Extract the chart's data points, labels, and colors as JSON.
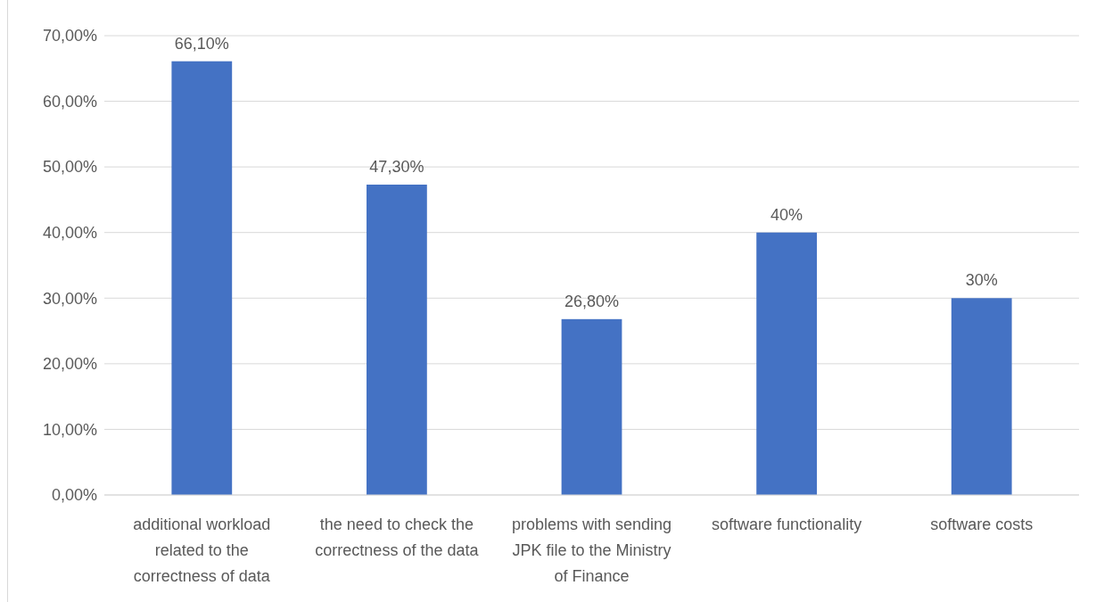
{
  "chart_data": {
    "type": "bar",
    "categories": [
      "additional workload related to the correctness of data",
      "the need to check the correctness of the data",
      "problems with sending JPK file to the Ministry of Finance",
      "software functionality",
      "software costs"
    ],
    "values": [
      66.1,
      47.3,
      26.8,
      40,
      30
    ],
    "value_labels": [
      "66,10%",
      "47,30%",
      "26,80%",
      "40%",
      "30%"
    ],
    "color": "#4472c4",
    "ylim": [
      0,
      70
    ],
    "yticks": [
      {
        "value": 0,
        "label": "0,00%"
      },
      {
        "value": 10,
        "label": "10,00%"
      },
      {
        "value": 20,
        "label": "20,00%"
      },
      {
        "value": 30,
        "label": "30,00%"
      },
      {
        "value": 40,
        "label": "40,00%"
      },
      {
        "value": 50,
        "label": "50,00%"
      },
      {
        "value": 60,
        "label": "60,00%"
      },
      {
        "value": 70,
        "label": "70,00%"
      }
    ],
    "grid": "y"
  }
}
